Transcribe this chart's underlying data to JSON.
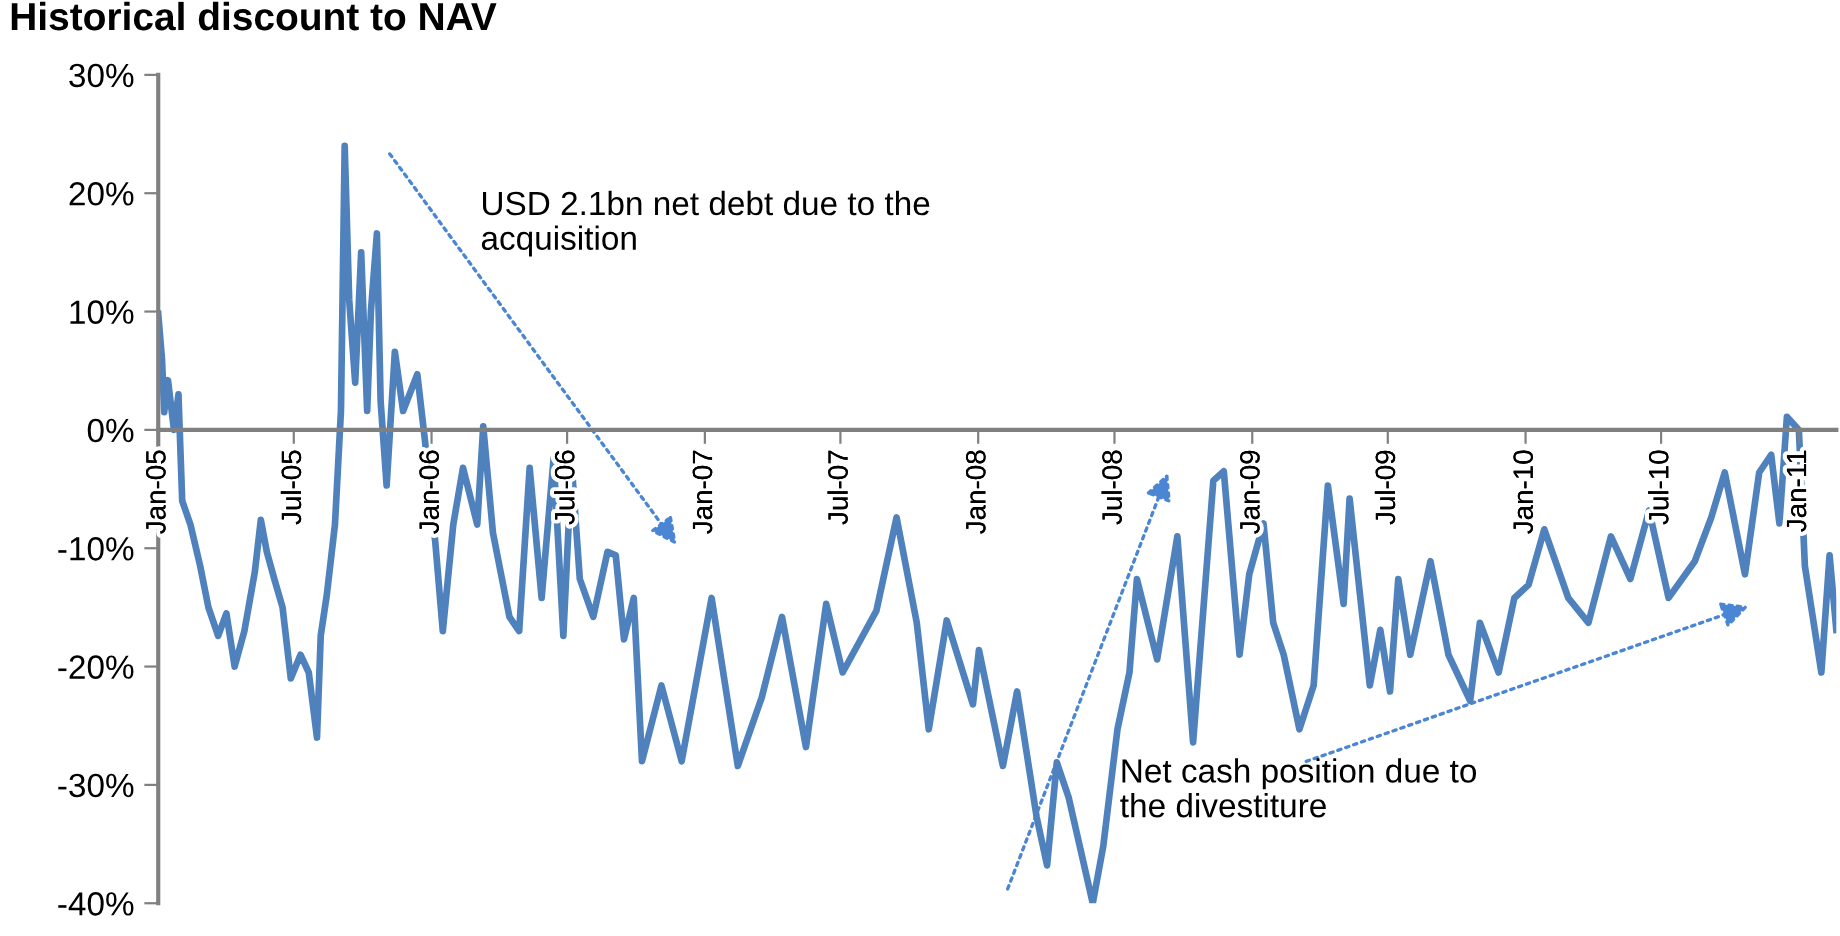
{
  "chart_data": {
    "type": "line",
    "title": "Historical discount to NAV",
    "x": [
      "2005-01-01",
      "2005-01-06",
      "2005-01-09",
      "2005-01-14",
      "2005-01-22",
      "2005-01-28",
      "2005-02-02",
      "2005-02-13",
      "2005-02-26",
      "2005-03-09",
      "2005-03-22",
      "2005-04-02",
      "2005-04-13",
      "2005-04-26",
      "2005-05-10",
      "2005-05-18",
      "2005-05-26",
      "2005-06-05",
      "2005-06-16",
      "2005-06-27",
      "2005-07-10",
      "2005-07-21",
      "2005-08-01",
      "2005-08-06",
      "2005-08-14",
      "2005-08-25",
      "2005-09-02",
      "2005-09-07",
      "2005-09-13",
      "2005-09-21",
      "2005-09-29",
      "2005-10-07",
      "2005-10-12",
      "2005-10-20",
      "2005-10-25",
      "2005-11-02",
      "2005-11-13",
      "2005-11-24",
      "2005-12-13",
      "2005-12-23",
      "2006-01-06",
      "2006-01-16",
      "2006-01-30",
      "2006-02-12",
      "2006-03-03",
      "2006-03-11",
      "2006-03-24",
      "2006-04-15",
      "2006-04-28",
      "2006-05-12",
      "2006-05-28",
      "2006-06-13",
      "2006-06-26",
      "2006-07-07",
      "2006-07-18",
      "2006-08-05",
      "2006-08-24",
      "2006-09-04",
      "2006-09-15",
      "2006-09-28",
      "2006-10-09",
      "2006-11-04",
      "2006-12-01",
      "2007-01-10",
      "2007-02-14",
      "2007-03-18",
      "2007-04-14",
      "2007-05-16",
      "2007-06-12",
      "2007-07-04",
      "2007-08-18",
      "2007-09-14",
      "2007-10-11",
      "2007-10-27",
      "2007-11-20",
      "2007-12-25",
      "2008-01-02",
      "2008-02-03",
      "2008-02-22",
      "2008-03-19",
      "2008-04-02",
      "2008-04-15",
      "2008-05-01",
      "2008-06-02",
      "2008-06-16",
      "2008-07-05",
      "2008-07-21",
      "2008-07-31",
      "2008-08-27",
      "2008-09-23",
      "2008-10-14",
      "2008-11-10",
      "2008-11-24",
      "2008-12-15",
      "2008-12-28",
      "2009-01-16",
      "2009-01-29",
      "2009-02-12",
      "2009-03-05",
      "2009-03-24",
      "2009-04-12",
      "2009-05-03",
      "2009-05-11",
      "2009-06-07",
      "2009-06-21",
      "2009-07-04",
      "2009-07-15",
      "2009-07-31",
      "2009-08-27",
      "2009-09-20",
      "2009-10-19",
      "2009-11-01",
      "2009-11-26",
      "2009-12-17",
      "2010-01-05",
      "2010-01-26",
      "2010-02-27",
      "2010-03-26",
      "2010-04-25",
      "2010-05-21",
      "2010-06-15",
      "2010-07-11",
      "2010-08-15",
      "2010-09-06",
      "2010-09-24",
      "2010-10-21",
      "2010-11-09",
      "2010-11-25",
      "2010-12-06",
      "2010-12-16",
      "2011-01-01",
      "2011-01-09",
      "2011-01-31",
      "2011-02-11",
      "2011-02-20"
    ],
    "series": [
      {
        "color": "#4f81bd",
        "values": [
          9.8,
          6,
          1.5,
          4.2,
          0,
          3,
          -6,
          -8,
          -11.5,
          -15,
          -17.4,
          -15.5,
          -20,
          -17,
          -12,
          -7.6,
          -10.3,
          -12.6,
          -15,
          -21,
          -19,
          -20.5,
          -26,
          -17.4,
          -14,
          -8,
          1.6,
          24,
          11,
          4,
          15,
          1.6,
          10,
          16.6,
          2.4,
          -4.7,
          6.6,
          1.6,
          4.7,
          -0.8,
          -9.5,
          -17,
          -8,
          -3.2,
          -8,
          0.3,
          -8.7,
          -15.8,
          -17,
          -3.2,
          -14.2,
          -2.4,
          -17.4,
          -2.8,
          -12.6,
          -15.8,
          -10.3,
          -10.6,
          -17.7,
          -14.2,
          -28,
          -21.6,
          -28,
          -14.2,
          -28.4,
          -22.6,
          -15.8,
          -26.8,
          -14.7,
          -20.5,
          -15.3,
          -7.4,
          -16.3,
          -25.3,
          -16.1,
          -23.2,
          -18.6,
          -28.4,
          -22.1,
          -32.7,
          -36.8,
          -28.1,
          -31.1,
          -40,
          -35.2,
          -25.3,
          -20.5,
          -12.6,
          -19.4,
          -9,
          -26.4,
          -4.3,
          -3.5,
          -19,
          -12.2,
          -7.9,
          -16.3,
          -19,
          -25.3,
          -21.6,
          -4.7,
          -14.7,
          -5.8,
          -21.6,
          -16.9,
          -22.1,
          -12.6,
          -19,
          -11.1,
          -19,
          -22.9,
          -16.3,
          -20.5,
          -14.2,
          -13.1,
          -8.4,
          -14.2,
          -16.3,
          -9,
          -12.6,
          -6.8,
          -14.2,
          -11.1,
          -7.4,
          -3.6,
          -12.2,
          -3.6,
          -2.1,
          -7.9,
          1.1,
          0,
          -11.5,
          -20.5,
          -10.6,
          -16.9
        ]
      }
    ],
    "xlim": [
      "2005-01-01",
      "2011-02-20"
    ],
    "xticks": [
      {
        "value": "2005-01-01",
        "label": "Jan-05"
      },
      {
        "value": "2005-07-01",
        "label": "Jul-05"
      },
      {
        "value": "2006-01-01",
        "label": "Jan-06"
      },
      {
        "value": "2006-07-01",
        "label": "Jul-06"
      },
      {
        "value": "2007-01-01",
        "label": "Jan-07"
      },
      {
        "value": "2007-07-01",
        "label": "Jul-07"
      },
      {
        "value": "2008-01-01",
        "label": "Jan-08"
      },
      {
        "value": "2008-07-01",
        "label": "Jul-08"
      },
      {
        "value": "2009-01-01",
        "label": "Jan-09"
      },
      {
        "value": "2009-07-01",
        "label": "Jul-09"
      },
      {
        "value": "2010-01-01",
        "label": "Jan-10"
      },
      {
        "value": "2010-07-01",
        "label": "Jul-10"
      },
      {
        "value": "2011-01-01",
        "label": "Jan-11"
      }
    ],
    "ylim": [
      -40,
      30
    ],
    "yticks": [
      {
        "value": -40,
        "label": "-40%"
      },
      {
        "value": -30,
        "label": "-30%"
      },
      {
        "value": -20,
        "label": "-20%"
      },
      {
        "value": -10,
        "label": "-10%"
      },
      {
        "value": 0,
        "label": "0%"
      },
      {
        "value": 10,
        "label": "10%"
      },
      {
        "value": 20,
        "label": "20%"
      },
      {
        "value": 30,
        "label": "30%"
      }
    ],
    "annotations": [
      "USD 2.1bn net debt due to the\nacquisition",
      "Net cash position due to\nthe divestiture"
    ],
    "grid": false,
    "legend": false,
    "marker": "none",
    "line_style": "solid"
  }
}
